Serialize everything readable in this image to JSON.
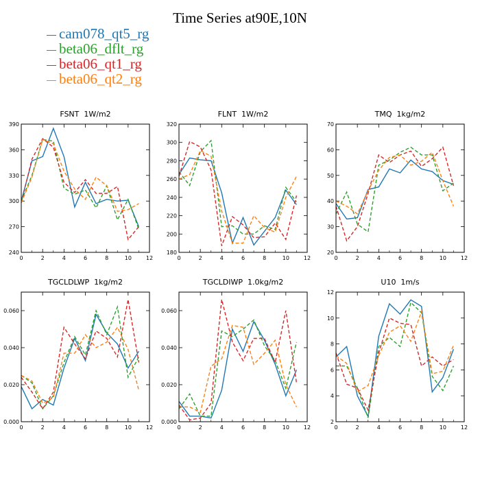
{
  "title": "Time Series at90E,10N",
  "legend": [
    {
      "name": "cam078_qt5_rg",
      "color": "#1f77b4",
      "dash": "solid"
    },
    {
      "name": "beta06_dflt_rg",
      "color": "#2ca02c",
      "dash": "dashed"
    },
    {
      "name": "beta06_qt1_rg",
      "color": "#d62728",
      "dash": "dashed"
    },
    {
      "name": "beta06_qt2_rg",
      "color": "#ff7f0e",
      "dash": "dashed"
    }
  ],
  "chart_data": [
    {
      "type": "line",
      "title": "FSNT 1W/m2",
      "x": [
        0,
        1,
        2,
        3,
        4,
        5,
        6,
        7,
        8,
        9,
        10,
        11
      ],
      "xlim": [
        0,
        12
      ],
      "xticks": [
        "0",
        "2",
        "4",
        "6",
        "8",
        "10",
        "12"
      ],
      "ylim": [
        240,
        390
      ],
      "yticks": [
        "240",
        "270",
        "300",
        "330",
        "360",
        "390"
      ],
      "series": [
        {
          "name": "cam078_qt5_rg",
          "values": [
            300,
            347,
            352,
            385,
            352,
            293,
            322,
            297,
            302,
            300,
            301,
            270
          ]
        },
        {
          "name": "beta06_dflt_rg",
          "values": [
            300,
            330,
            372,
            370,
            315,
            308,
            313,
            292,
            318,
            278,
            302,
            267
          ]
        },
        {
          "name": "beta06_qt1_rg",
          "values": [
            298,
            349,
            373,
            363,
            322,
            310,
            325,
            309,
            309,
            317,
            255,
            270
          ]
        },
        {
          "name": "beta06_qt2_rg",
          "values": [
            298,
            328,
            372,
            367,
            335,
            314,
            302,
            328,
            318,
            288,
            290,
            297
          ]
        }
      ]
    },
    {
      "type": "line",
      "title": "FLNT 1W/m2",
      "x": [
        0,
        1,
        2,
        3,
        4,
        5,
        6,
        7,
        8,
        9,
        10,
        11
      ],
      "xlim": [
        0,
        12
      ],
      "xticks": [
        "0",
        "2",
        "4",
        "6",
        "8",
        "10",
        "12"
      ],
      "ylim": [
        180,
        320
      ],
      "yticks": [
        "180",
        "200",
        "220",
        "240",
        "260",
        "280",
        "300",
        "320"
      ],
      "series": [
        {
          "name": "cam078_qt5_rg",
          "values": [
            265,
            283,
            281,
            280,
            245,
            190,
            218,
            188,
            203,
            218,
            248,
            232
          ]
        },
        {
          "name": "beta06_dflt_rg",
          "values": [
            268,
            253,
            290,
            302,
            208,
            209,
            200,
            200,
            209,
            205,
            251,
            235
          ]
        },
        {
          "name": "beta06_qt1_rg",
          "values": [
            263,
            301,
            295,
            270,
            187,
            219,
            210,
            196,
            197,
            212,
            194,
            242
          ]
        },
        {
          "name": "beta06_qt2_rg",
          "values": [
            260,
            265,
            291,
            285,
            225,
            190,
            190,
            220,
            207,
            202,
            240,
            263
          ]
        }
      ]
    },
    {
      "type": "line",
      "title": "TMQ 1kg/m2",
      "x": [
        0,
        1,
        2,
        3,
        4,
        5,
        6,
        7,
        8,
        9,
        10,
        11
      ],
      "xlim": [
        0,
        12
      ],
      "xticks": [
        "0",
        "2",
        "4",
        "6",
        "8",
        "10",
        "12"
      ],
      "ylim": [
        20,
        70
      ],
      "yticks": [
        "20",
        "30",
        "40",
        "50",
        "60",
        "70"
      ],
      "series": [
        {
          "name": "cam078_qt5_rg",
          "values": [
            39,
            33,
            33.5,
            44.5,
            45.5,
            52.5,
            51,
            56,
            52.5,
            51.5,
            48,
            46.5
          ]
        },
        {
          "name": "beta06_dflt_rg",
          "values": [
            35,
            43.5,
            31,
            28,
            54,
            56,
            59,
            61,
            58,
            58,
            44,
            47
          ]
        },
        {
          "name": "beta06_qt1_rg",
          "values": [
            38,
            24.5,
            30,
            43,
            58,
            55,
            58,
            59.5,
            53.5,
            56.5,
            61,
            46
          ]
        },
        {
          "name": "beta06_qt2_rg",
          "values": [
            40,
            38,
            35,
            44,
            52,
            57,
            58,
            54,
            55.5,
            59,
            48,
            38
          ]
        }
      ]
    },
    {
      "type": "line",
      "title": "TGCLDLWP 1kg/m2",
      "x": [
        0,
        1,
        2,
        3,
        4,
        5,
        6,
        7,
        8,
        9,
        10,
        11
      ],
      "xlim": [
        0,
        12
      ],
      "xticks": [
        "0",
        "2",
        "4",
        "6",
        "8",
        "10",
        "12"
      ],
      "ylim": [
        0,
        0.07
      ],
      "yticks": [
        "0.000",
        "0.020",
        "0.040",
        "0.060"
      ],
      "series": [
        {
          "name": "cam078_qt5_rg",
          "values": [
            0.019,
            0.007,
            0.012,
            0.009,
            0.029,
            0.045,
            0.033,
            0.058,
            0.048,
            0.042,
            0.029,
            0.038
          ]
        },
        {
          "name": "beta06_dflt_rg",
          "values": [
            0.025,
            0.021,
            0.007,
            0.014,
            0.032,
            0.046,
            0.036,
            0.06,
            0.047,
            0.062,
            0.024,
            0.035
          ]
        },
        {
          "name": "beta06_qt1_rg",
          "values": [
            0.024,
            0.016,
            0.007,
            0.016,
            0.051,
            0.042,
            0.034,
            0.049,
            0.045,
            0.035,
            0.066,
            0.032
          ]
        },
        {
          "name": "beta06_qt2_rg",
          "values": [
            0.025,
            0.022,
            0.01,
            0.013,
            0.037,
            0.037,
            0.047,
            0.04,
            0.043,
            0.051,
            0.039,
            0.017
          ]
        }
      ]
    },
    {
      "type": "line",
      "title": "TGCLDIWP 1.0kg/m2",
      "x": [
        0,
        1,
        2,
        3,
        4,
        5,
        6,
        7,
        8,
        9,
        10,
        11
      ],
      "xlim": [
        0,
        12
      ],
      "xticks": [
        "0",
        "2",
        "4",
        "6",
        "8",
        "10",
        "12"
      ],
      "ylim": [
        0,
        0.07
      ],
      "yticks": [
        "0.000",
        "0.020",
        "0.040",
        "0.060"
      ],
      "series": [
        {
          "name": "cam078_qt5_rg",
          "values": [
            0.011,
            0.003,
            0.003,
            0.002,
            0.017,
            0.05,
            0.038,
            0.054,
            0.044,
            0.031,
            0.014,
            0.028
          ]
        },
        {
          "name": "beta06_dflt_rg",
          "values": [
            0.007,
            0.015,
            0.003,
            0.003,
            0.049,
            0.046,
            0.05,
            0.055,
            0.041,
            0.033,
            0.018,
            0.043
          ]
        },
        {
          "name": "beta06_qt1_rg",
          "values": [
            0.009,
            0.001,
            0.002,
            0.01,
            0.066,
            0.043,
            0.033,
            0.045,
            0.045,
            0.032,
            0.06,
            0.021
          ]
        },
        {
          "name": "beta06_qt2_rg",
          "values": [
            0.008,
            0.008,
            0.005,
            0.03,
            0.034,
            0.052,
            0.051,
            0.031,
            0.037,
            0.044,
            0.02,
            0.008
          ]
        }
      ]
    },
    {
      "type": "line",
      "title": "U10 1m/s",
      "x": [
        0,
        1,
        2,
        3,
        4,
        5,
        6,
        7,
        8,
        9,
        10,
        11
      ],
      "xlim": [
        0,
        12
      ],
      "xticks": [
        "0",
        "2",
        "4",
        "6",
        "8",
        "10",
        "12"
      ],
      "ylim": [
        2,
        12
      ],
      "yticks": [
        "2",
        "4",
        "6",
        "8",
        "10",
        "12"
      ],
      "series": [
        {
          "name": "cam078_qt5_rg",
          "values": [
            7.0,
            7.8,
            4.0,
            2.4,
            8.6,
            11.1,
            10.3,
            11.4,
            10.9,
            4.3,
            5.4,
            7.6
          ]
        },
        {
          "name": "beta06_dflt_rg",
          "values": [
            6.3,
            6.3,
            4.6,
            2.3,
            7.8,
            8.5,
            7.8,
            11.2,
            10.4,
            5.5,
            4.4,
            6.3
          ]
        },
        {
          "name": "beta06_qt1_rg",
          "values": [
            7.3,
            4.9,
            4.6,
            2.9,
            7.3,
            10.0,
            9.6,
            9.5,
            6.3,
            7.0,
            6.3,
            6.8
          ]
        },
        {
          "name": "beta06_qt2_rg",
          "values": [
            7.1,
            6.5,
            4.3,
            4.8,
            7.1,
            8.9,
            9.4,
            8.2,
            10.5,
            5.7,
            5.9,
            7.9
          ]
        }
      ]
    }
  ]
}
